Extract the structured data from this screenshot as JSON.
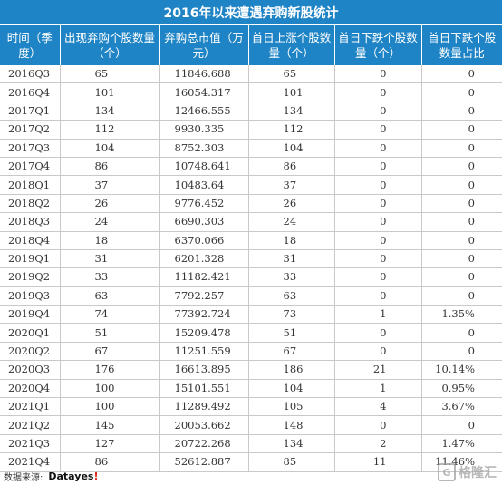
{
  "title": "2016年以来遭遇弃购新股统计",
  "columns": [
    "时间（季度）",
    "出现弃购个股数量（个）",
    "弃购总市值（万元）",
    "首日上涨个股数量（个）",
    "首日下跌个股数量（个）",
    "首日下跌个股数量占比"
  ],
  "rows": [
    [
      "2016Q3",
      "65",
      "11846.688",
      "65",
      "0",
      "0"
    ],
    [
      "2016Q4",
      "101",
      "16054.317",
      "101",
      "0",
      "0"
    ],
    [
      "2017Q1",
      "134",
      "12466.555",
      "134",
      "0",
      "0"
    ],
    [
      "2017Q2",
      "112",
      "9930.335",
      "112",
      "0",
      "0"
    ],
    [
      "2017Q3",
      "104",
      "8752.303",
      "104",
      "0",
      "0"
    ],
    [
      "2017Q4",
      "86",
      "10748.641",
      "86",
      "0",
      "0"
    ],
    [
      "2018Q1",
      "37",
      "10483.64",
      "37",
      "0",
      "0"
    ],
    [
      "2018Q2",
      "26",
      "9776.452",
      "26",
      "0",
      "0"
    ],
    [
      "2018Q3",
      "24",
      "6690.303",
      "24",
      "0",
      "0"
    ],
    [
      "2018Q4",
      "18",
      "6370.066",
      "18",
      "0",
      "0"
    ],
    [
      "2019Q1",
      "31",
      "6201.328",
      "31",
      "0",
      "0"
    ],
    [
      "2019Q2",
      "33",
      "11182.421",
      "33",
      "0",
      "0"
    ],
    [
      "2019Q3",
      "63",
      "7792.257",
      "63",
      "0",
      "0"
    ],
    [
      "2019Q4",
      "74",
      "77392.724",
      "73",
      "1",
      "1.35%"
    ],
    [
      "2020Q1",
      "51",
      "15209.478",
      "51",
      "0",
      "0"
    ],
    [
      "2020Q2",
      "67",
      "11251.559",
      "67",
      "0",
      "0"
    ],
    [
      "2020Q3",
      "176",
      "16613.895",
      "186",
      "21",
      "10.14%"
    ],
    [
      "2020Q4",
      "100",
      "15101.551",
      "104",
      "1",
      "0.95%"
    ],
    [
      "2021Q1",
      "100",
      "11289.492",
      "105",
      "4",
      "3.67%"
    ],
    [
      "2021Q2",
      "145",
      "20053.662",
      "148",
      "0",
      "0"
    ],
    [
      "2021Q3",
      "127",
      "20722.268",
      "134",
      "2",
      "1.47%"
    ],
    [
      "2021Q4",
      "86",
      "52612.887",
      "85",
      "11",
      "11.46%"
    ]
  ],
  "footer": {
    "source_label": "数据来源:",
    "brand_main": "Datayes",
    "brand_accent": "!"
  },
  "watermark": {
    "logo_char": "G",
    "text": "格隆汇"
  },
  "colors": {
    "header_bg": "#1f84c6",
    "grid": "#c9c9c9",
    "brand_accent": "#e2221a"
  }
}
